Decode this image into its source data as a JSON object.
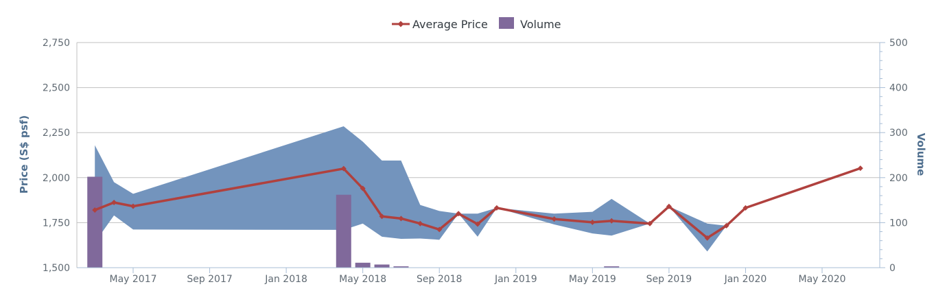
{
  "chart_data": {
    "type": "line",
    "legend": {
      "placement": "top-center",
      "items": [
        "Average Price",
        "Volume"
      ]
    },
    "x_tick_labels": [
      "May 2017",
      "Sep 2017",
      "Jan 2018",
      "May 2018",
      "Sep 2018",
      "Jan 2019",
      "May 2019",
      "Sep 2019",
      "Jan 2020",
      "May 2020"
    ],
    "y_left": {
      "label": "Price (S$ psf)",
      "range": [
        1500,
        2750
      ],
      "ticks": [
        "1,500",
        "1,750",
        "2,000",
        "2,250",
        "2,500",
        "2,750"
      ]
    },
    "y_right": {
      "label": "Volume",
      "range": [
        0,
        500
      ],
      "ticks": [
        "0",
        "100",
        "200",
        "300",
        "400",
        "500"
      ]
    },
    "grid": true,
    "colors": {
      "price_line": "#b0413e",
      "volume_bar": "#80699b",
      "range_band": "#7394bd",
      "grid": "#c0c0c0",
      "axis": "#a7bdd6"
    },
    "series": [
      {
        "name": "Average Price",
        "kind": "line",
        "axis": "left",
        "points": [
          {
            "x": "2017-03",
            "y": 1820
          },
          {
            "x": "2017-04",
            "y": 1862
          },
          {
            "x": "2017-05",
            "y": 1841
          },
          {
            "x": "2018-04",
            "y": 2050
          },
          {
            "x": "2018-05",
            "y": 1940
          },
          {
            "x": "2018-06",
            "y": 1785
          },
          {
            "x": "2018-07",
            "y": 1773
          },
          {
            "x": "2018-08",
            "y": 1745
          },
          {
            "x": "2018-09",
            "y": 1712
          },
          {
            "x": "2018-10",
            "y": 1800
          },
          {
            "x": "2018-11",
            "y": 1742
          },
          {
            "x": "2018-12",
            "y": 1832
          },
          {
            "x": "2019-03",
            "y": 1770
          },
          {
            "x": "2019-05",
            "y": 1752
          },
          {
            "x": "2019-06",
            "y": 1760
          },
          {
            "x": "2019-08",
            "y": 1745
          },
          {
            "x": "2019-09",
            "y": 1840
          },
          {
            "x": "2019-11",
            "y": 1665
          },
          {
            "x": "2019-12",
            "y": 1733
          },
          {
            "x": "2020-01",
            "y": 1832
          },
          {
            "x": "2020-07",
            "y": 2052
          }
        ]
      },
      {
        "name": "Price Range",
        "kind": "arearange",
        "axis": "left",
        "points": [
          {
            "x": "2017-03",
            "low": 1640,
            "high": 2180
          },
          {
            "x": "2017-04",
            "low": 1790,
            "high": 1975
          },
          {
            "x": "2017-05",
            "low": 1712,
            "high": 1910
          },
          {
            "x": "2018-04",
            "low": 1710,
            "high": 2285
          },
          {
            "x": "2018-05",
            "low": 1745,
            "high": 2200
          },
          {
            "x": "2018-06",
            "low": 1672,
            "high": 2095
          },
          {
            "x": "2018-07",
            "low": 1660,
            "high": 2095
          },
          {
            "x": "2018-08",
            "low": 1662,
            "high": 1848
          },
          {
            "x": "2018-09",
            "low": 1655,
            "high": 1815
          },
          {
            "x": "2018-10",
            "low": 1800,
            "high": 1800
          },
          {
            "x": "2018-11",
            "low": 1672,
            "high": 1800
          },
          {
            "x": "2018-12",
            "low": 1832,
            "high": 1832
          },
          {
            "x": "2019-03",
            "low": 1740,
            "high": 1800
          },
          {
            "x": "2019-05",
            "low": 1690,
            "high": 1810
          },
          {
            "x": "2019-06",
            "low": 1678,
            "high": 1882
          },
          {
            "x": "2019-08",
            "low": 1745,
            "high": 1745
          },
          {
            "x": "2019-09",
            "low": 1840,
            "high": 1840
          },
          {
            "x": "2019-11",
            "low": 1590,
            "high": 1745
          },
          {
            "x": "2019-12",
            "low": 1733,
            "high": 1733
          }
        ]
      },
      {
        "name": "Volume",
        "kind": "column",
        "axis": "right",
        "points": [
          {
            "x": "2017-03",
            "y": 202
          },
          {
            "x": "2018-04",
            "y": 162
          },
          {
            "x": "2018-05",
            "y": 11
          },
          {
            "x": "2018-06",
            "y": 7
          },
          {
            "x": "2018-07",
            "y": 3
          },
          {
            "x": "2019-06",
            "y": 3
          }
        ]
      }
    ]
  }
}
